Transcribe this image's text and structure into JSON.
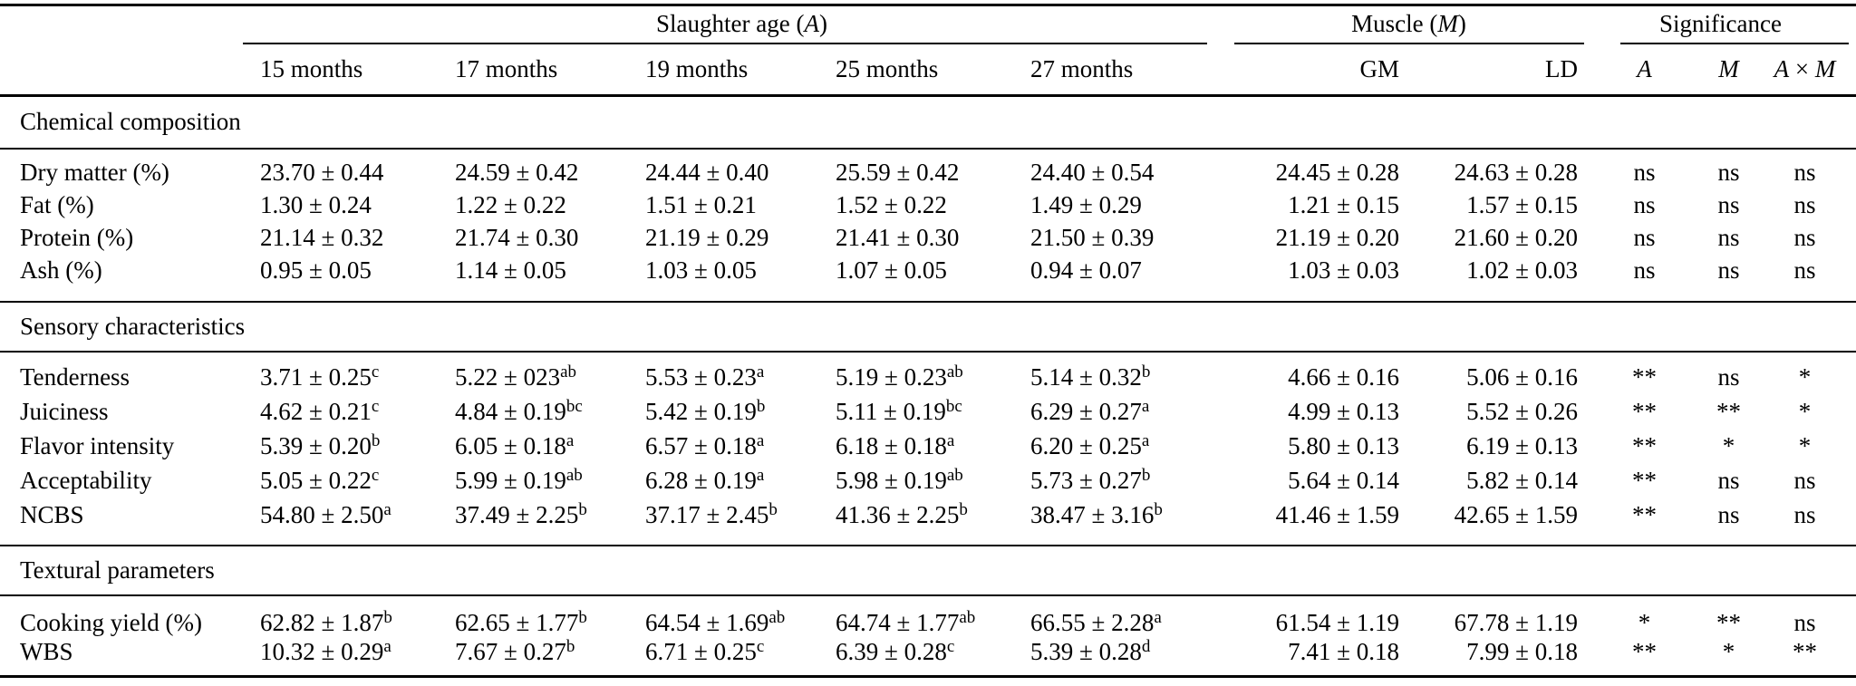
{
  "colors": {
    "text": "#000000",
    "background": "#ffffff",
    "rule": "#000000"
  },
  "header": {
    "groups": [
      {
        "parts": [
          {
            "t": "Slaughter age (",
            "italic": false
          },
          {
            "t": "A",
            "italic": true
          },
          {
            "t": ")",
            "italic": false
          }
        ]
      },
      {
        "parts": [
          {
            "t": "Muscle (",
            "italic": false
          },
          {
            "t": "M",
            "italic": true
          },
          {
            "t": ")",
            "italic": false
          }
        ]
      },
      {
        "parts": [
          {
            "t": "Significance",
            "italic": false
          }
        ]
      }
    ],
    "age_columns": [
      "15 months",
      "17 months",
      "19 months",
      "25 months",
      "27 months"
    ],
    "muscle_columns": [
      "GM",
      "LD"
    ],
    "sig_columns": [
      {
        "parts": [
          {
            "t": "A",
            "italic": true
          }
        ]
      },
      {
        "parts": [
          {
            "t": "M",
            "italic": true
          }
        ]
      },
      {
        "parts": [
          {
            "t": "A",
            "italic": true
          },
          {
            "t": " × ",
            "italic": false
          },
          {
            "t": "M",
            "italic": true
          }
        ]
      }
    ]
  },
  "sections": [
    {
      "title": "Chemical composition",
      "rows": [
        {
          "label": "Dry matter (%)",
          "ages": [
            {
              "t": "23.70 ± 0.44",
              "s": ""
            },
            {
              "t": "24.59 ± 0.42",
              "s": ""
            },
            {
              "t": "24.44 ± 0.40",
              "s": ""
            },
            {
              "t": "25.59 ± 0.42",
              "s": ""
            },
            {
              "t": "24.40 ± 0.54",
              "s": ""
            }
          ],
          "gm": "24.45 ± 0.28",
          "ld": "24.63 ± 0.28",
          "sig": [
            "ns",
            "ns",
            "ns"
          ]
        },
        {
          "label": "Fat (%)",
          "ages": [
            {
              "t": "1.30 ± 0.24",
              "s": ""
            },
            {
              "t": "1.22 ± 0.22",
              "s": ""
            },
            {
              "t": "1.51 ± 0.21",
              "s": ""
            },
            {
              "t": "1.52 ± 0.22",
              "s": ""
            },
            {
              "t": "1.49 ± 0.29",
              "s": ""
            }
          ],
          "gm": "1.21 ± 0.15",
          "ld": "1.57 ± 0.15",
          "sig": [
            "ns",
            "ns",
            "ns"
          ]
        },
        {
          "label": "Protein (%)",
          "ages": [
            {
              "t": "21.14 ± 0.32",
              "s": ""
            },
            {
              "t": "21.74 ± 0.30",
              "s": ""
            },
            {
              "t": "21.19 ± 0.29",
              "s": ""
            },
            {
              "t": "21.41 ± 0.30",
              "s": ""
            },
            {
              "t": "21.50 ± 0.39",
              "s": ""
            }
          ],
          "gm": "21.19 ± 0.20",
          "ld": "21.60 ± 0.20",
          "sig": [
            "ns",
            "ns",
            "ns"
          ]
        },
        {
          "label": "Ash (%)",
          "ages": [
            {
              "t": "0.95 ± 0.05",
              "s": ""
            },
            {
              "t": "1.14 ± 0.05",
              "s": ""
            },
            {
              "t": "1.03 ± 0.05",
              "s": ""
            },
            {
              "t": "1.07 ± 0.05",
              "s": ""
            },
            {
              "t": "0.94 ± 0.07",
              "s": ""
            }
          ],
          "gm": "1.03 ± 0.03",
          "ld": "1.02 ± 0.03",
          "sig": [
            "ns",
            "ns",
            "ns"
          ]
        }
      ]
    },
    {
      "title": "Sensory characteristics",
      "rows": [
        {
          "label": "Tenderness",
          "ages": [
            {
              "t": "3.71 ± 0.25",
              "s": "c"
            },
            {
              "t": "5.22 ± 023",
              "s": "ab"
            },
            {
              "t": "5.53 ± 0.23",
              "s": "a"
            },
            {
              "t": "5.19 ± 0.23",
              "s": "ab"
            },
            {
              "t": "5.14 ± 0.32",
              "s": "b"
            }
          ],
          "gm": "4.66 ± 0.16",
          "ld": "5.06 ± 0.16",
          "sig": [
            "**",
            "ns",
            "*"
          ]
        },
        {
          "label": "Juiciness",
          "ages": [
            {
              "t": "4.62 ± 0.21",
              "s": "c"
            },
            {
              "t": "4.84 ± 0.19",
              "s": "bc"
            },
            {
              "t": "5.42 ± 0.19",
              "s": "b"
            },
            {
              "t": "5.11 ± 0.19",
              "s": "bc"
            },
            {
              "t": "6.29 ± 0.27",
              "s": "a"
            }
          ],
          "gm": "4.99 ± 0.13",
          "ld": "5.52 ± 0.26",
          "sig": [
            "**",
            "**",
            "*"
          ]
        },
        {
          "label": "Flavor intensity",
          "ages": [
            {
              "t": "5.39 ± 0.20",
              "s": "b"
            },
            {
              "t": "6.05 ± 0.18",
              "s": "a"
            },
            {
              "t": "6.57 ± 0.18",
              "s": "a"
            },
            {
              "t": "6.18 ± 0.18",
              "s": "a"
            },
            {
              "t": "6.20 ± 0.25",
              "s": "a"
            }
          ],
          "gm": "5.80 ± 0.13",
          "ld": "6.19 ± 0.13",
          "sig": [
            "**",
            "*",
            "*"
          ]
        },
        {
          "label": "Acceptability",
          "ages": [
            {
              "t": "5.05 ± 0.22",
              "s": "c"
            },
            {
              "t": "5.99 ± 0.19",
              "s": "ab"
            },
            {
              "t": "6.28 ± 0.19",
              "s": "a"
            },
            {
              "t": "5.98 ± 0.19",
              "s": "ab"
            },
            {
              "t": "5.73 ± 0.27",
              "s": "b"
            }
          ],
          "gm": "5.64 ± 0.14",
          "ld": "5.82 ± 0.14",
          "sig": [
            "**",
            "ns",
            "ns"
          ]
        },
        {
          "label": "NCBS",
          "ages": [
            {
              "t": "54.80 ± 2.50",
              "s": "a"
            },
            {
              "t": "37.49 ± 2.25",
              "s": "b"
            },
            {
              "t": "37.17 ± 2.45",
              "s": "b"
            },
            {
              "t": "41.36 ± 2.25",
              "s": "b"
            },
            {
              "t": "38.47 ± 3.16",
              "s": "b"
            }
          ],
          "gm": "41.46 ± 1.59",
          "ld": "42.65 ± 1.59",
          "sig": [
            "**",
            "ns",
            "ns"
          ]
        }
      ]
    },
    {
      "title": "Textural parameters",
      "rows": [
        {
          "label": "Cooking yield (%)",
          "ages": [
            {
              "t": "62.82 ± 1.87",
              "s": "b"
            },
            {
              "t": "62.65 ± 1.77",
              "s": "b"
            },
            {
              "t": "64.54 ± 1.69",
              "s": "ab"
            },
            {
              "t": "64.74 ± 1.77",
              "s": "ab"
            },
            {
              "t": "66.55 ± 2.28",
              "s": "a"
            }
          ],
          "gm": "61.54 ± 1.19",
          "ld": "67.78 ± 1.19",
          "sig": [
            "*",
            "**",
            "ns"
          ]
        },
        {
          "label": "WBS",
          "ages": [
            {
              "t": "10.32 ± 0.29",
              "s": "a"
            },
            {
              "t": "7.67 ± 0.27",
              "s": "b"
            },
            {
              "t": "6.71 ± 0.25",
              "s": "c"
            },
            {
              "t": "6.39 ± 0.28",
              "s": "c"
            },
            {
              "t": "5.39 ± 0.28",
              "s": "d"
            }
          ],
          "gm": "7.41 ± 0.18",
          "ld": "7.99 ± 0.18",
          "sig": [
            "**",
            "*",
            "**"
          ]
        }
      ]
    }
  ]
}
